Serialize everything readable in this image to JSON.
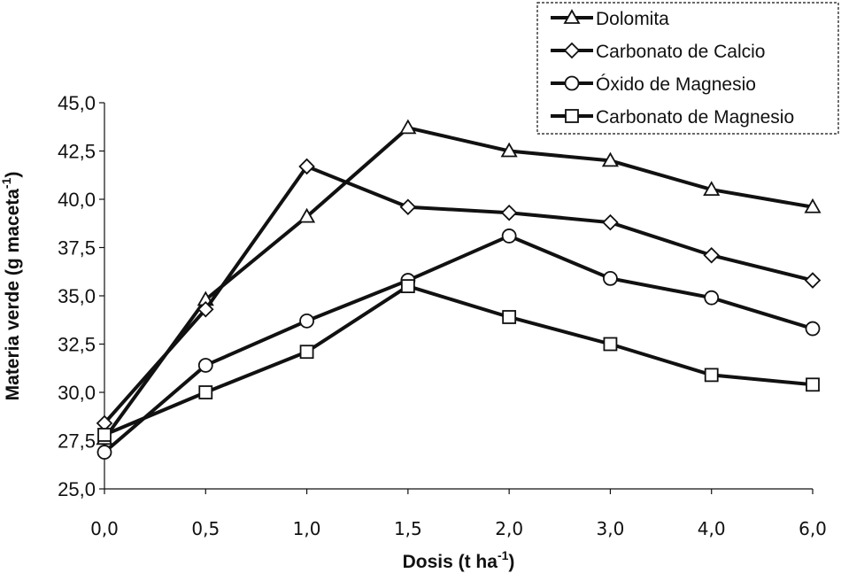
{
  "chart_data": {
    "type": "line",
    "categories": [
      "0,0",
      "0,5",
      "1,0",
      "1,5",
      "2,0",
      "3,0",
      "4,0",
      "6,0"
    ],
    "ylim": [
      25.0,
      45.0
    ],
    "yticks": [
      "25,0",
      "27,5",
      "30,0",
      "32,5",
      "35,0",
      "37,5",
      "40,0",
      "42,5",
      "45,0"
    ],
    "xlabel_main": "Dosis  (t ha",
    "xlabel_sup": "-1",
    "xlabel_end": ")",
    "ylabel_main": "Materia verde (g maceta",
    "ylabel_sup": "-1",
    "ylabel_end": ")",
    "legend_position": "top-right",
    "series": [
      {
        "name": "Dolomita",
        "marker": "triangle",
        "values": [
          27.6,
          34.8,
          39.1,
          43.7,
          42.5,
          42.0,
          40.5,
          39.6
        ]
      },
      {
        "name": "Carbonato de Calcio",
        "marker": "diamond",
        "values": [
          28.4,
          34.3,
          41.7,
          39.6,
          39.3,
          38.8,
          37.1,
          35.8
        ]
      },
      {
        "name": "Óxido de Magnesio",
        "marker": "circle",
        "values": [
          26.9,
          31.4,
          33.7,
          35.8,
          38.1,
          35.9,
          34.9,
          33.3
        ]
      },
      {
        "name": "Carbonato de Magnesio",
        "marker": "square",
        "values": [
          27.8,
          30.0,
          32.1,
          35.5,
          33.9,
          32.5,
          30.9,
          30.4
        ]
      }
    ]
  }
}
